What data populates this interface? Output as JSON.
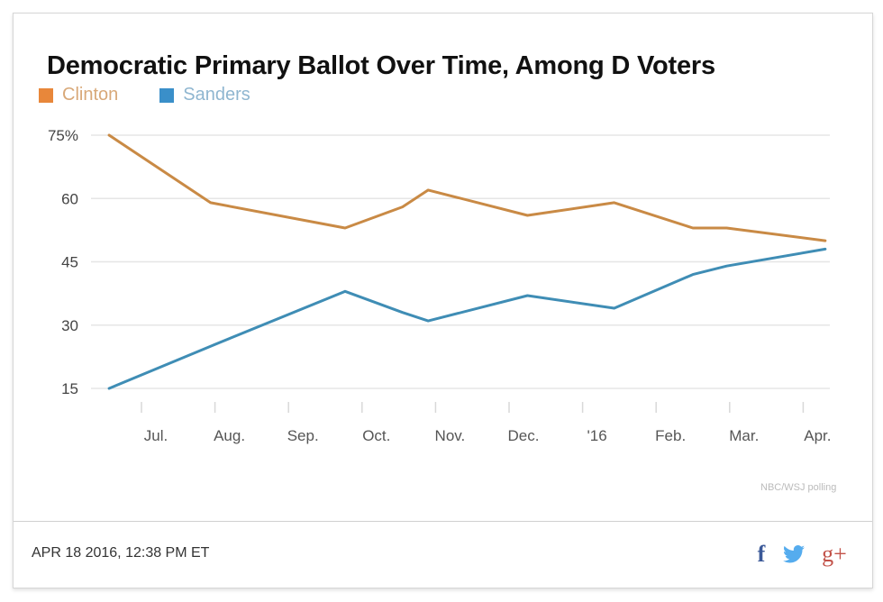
{
  "chart_data": {
    "type": "line",
    "title": "Democratic Primary Ballot Over Time, Among D Voters",
    "xlabel": "",
    "ylabel": "",
    "ylim": [
      15,
      75
    ],
    "yticks": [
      75,
      60,
      45,
      30,
      15
    ],
    "ytick_labels": [
      "75%",
      "60",
      "45",
      "30",
      "15"
    ],
    "xtick_positions": [
      0,
      1,
      2,
      3,
      4,
      5,
      6,
      7,
      8,
      9
    ],
    "xtick_labels": [
      "Jul.",
      "Aug.",
      "Sep.",
      "Oct.",
      "Nov.",
      "Dec.",
      "'16",
      "Feb.",
      "Mar.",
      "Apr."
    ],
    "x_units": "months since July 2015 (0 = Jul. 2015, 6 = Jan. 2016)",
    "xlim": [
      -0.44,
      9.33
    ],
    "grid": true,
    "legend_position": "top-left",
    "x": [
      -0.44,
      0.94,
      2.77,
      3.55,
      3.9,
      5.25,
      6.43,
      7.5,
      7.96,
      9.3
    ],
    "series": [
      {
        "name": "Clinton",
        "color": "#c98a45",
        "legend_color": "#e8873a",
        "label_color": "#d8a878",
        "values": [
          75,
          59,
          53,
          58,
          62,
          56,
          59,
          53,
          53,
          50
        ]
      },
      {
        "name": "Sanders",
        "color": "#3f8db5",
        "legend_color": "#3a8fc9",
        "label_color": "#8fb6d0",
        "values": [
          15,
          25,
          38,
          33,
          31,
          37,
          34,
          42,
          44,
          48
        ]
      }
    ],
    "source": "NBC/WSJ polling"
  },
  "footer": {
    "timestamp": "APR 18 2016, 12:38 PM ET",
    "share": [
      {
        "name": "facebook",
        "glyph": "f"
      },
      {
        "name": "twitter",
        "glyph": ""
      },
      {
        "name": "google-plus",
        "glyph": "g+"
      }
    ]
  }
}
